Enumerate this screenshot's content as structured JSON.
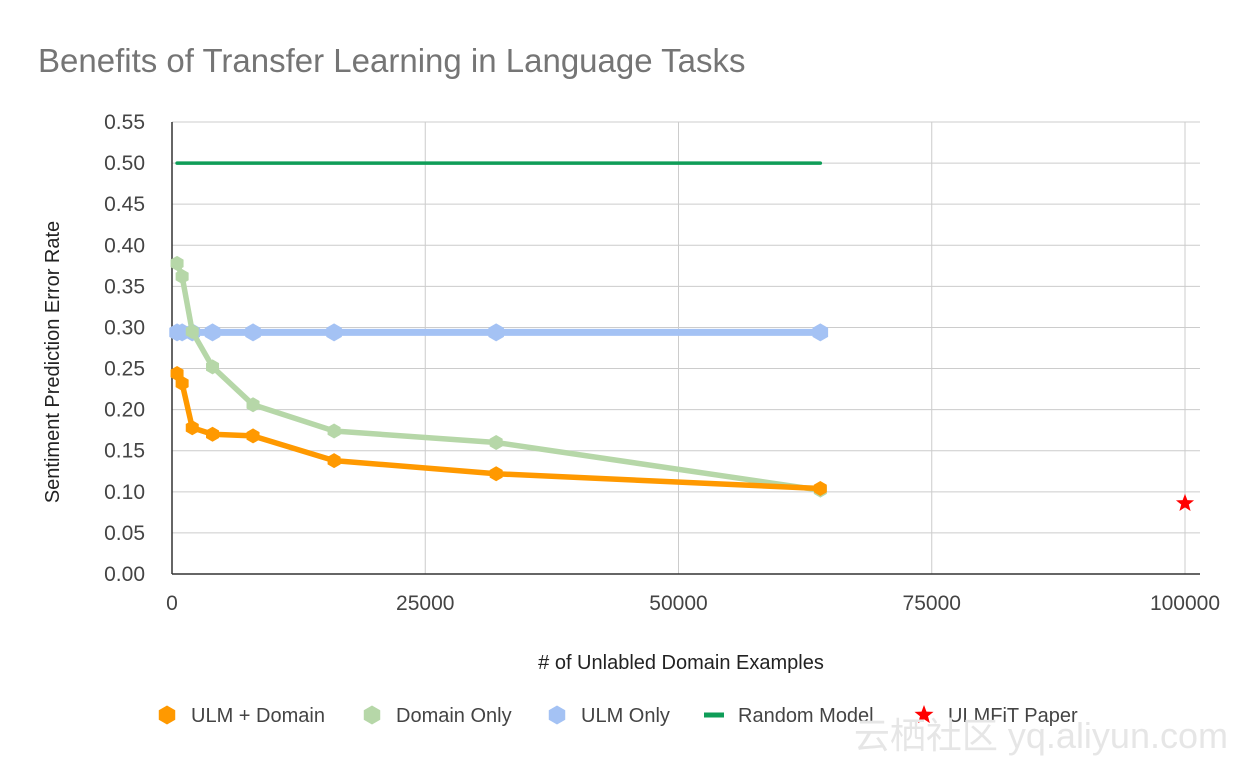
{
  "chart_data": {
    "type": "line",
    "title": "Benefits of Transfer Learning in Language Tasks",
    "xlabel": "# of Unlabled Domain Examples",
    "ylabel": "Sentiment Prediction Error Rate",
    "xlim": [
      0,
      100000
    ],
    "ylim": [
      0,
      0.55
    ],
    "xticks": [
      0,
      25000,
      50000,
      75000,
      100000
    ],
    "xtick_labels": [
      "0",
      "25000",
      "50000",
      "75000",
      "100000"
    ],
    "yticks": [
      0,
      0.05,
      0.1,
      0.15,
      0.2,
      0.25,
      0.3,
      0.35,
      0.4,
      0.45,
      0.5,
      0.55
    ],
    "ytick_labels": [
      "0.00",
      "0.05",
      "0.10",
      "0.15",
      "0.20",
      "0.25",
      "0.30",
      "0.35",
      "0.40",
      "0.45",
      "0.50",
      "0.55"
    ],
    "grid": true,
    "legend_position": "bottom",
    "series": [
      {
        "name": "ULM + Domain",
        "color": "#ff9900",
        "marker": "hexagon",
        "x": [
          500,
          1000,
          2000,
          4000,
          8000,
          16000,
          32000,
          64000
        ],
        "y": [
          0.244,
          0.232,
          0.178,
          0.17,
          0.168,
          0.138,
          0.122,
          0.104
        ]
      },
      {
        "name": "Domain Only",
        "color": "#b6d7a8",
        "marker": "hexagon",
        "x": [
          500,
          1000,
          2000,
          4000,
          8000,
          16000,
          32000,
          64000
        ],
        "y": [
          0.378,
          0.362,
          0.295,
          0.252,
          0.206,
          0.174,
          0.16,
          0.102
        ]
      },
      {
        "name": "ULM Only",
        "color": "#a4c2f4",
        "marker": "hexagon",
        "x": [
          500,
          1000,
          2000,
          4000,
          8000,
          16000,
          32000,
          64000
        ],
        "y": [
          0.294,
          0.294,
          0.294,
          0.294,
          0.294,
          0.294,
          0.294,
          0.294
        ]
      },
      {
        "name": "Random Model",
        "color": "#0f9d58",
        "marker": "none",
        "x": [
          500,
          64000
        ],
        "y": [
          0.5,
          0.5
        ]
      },
      {
        "name": "ULMFiT Paper",
        "color": "#ff0000",
        "marker": "star",
        "x": [
          100000
        ],
        "y": [
          0.086
        ]
      }
    ]
  },
  "watermark": "云栖社区 yq.aliyun.com"
}
